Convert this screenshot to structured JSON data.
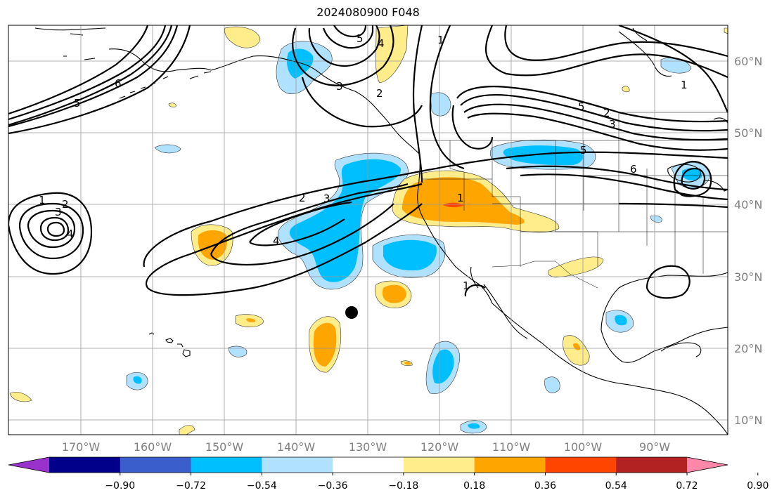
{
  "title": "2024080900 F048",
  "lon_labels": [
    "170°W",
    "160°W",
    "150°W",
    "140°W",
    "130°W",
    "120°W",
    "110°W",
    "100°W",
    "90°W"
  ],
  "lat_labels": [
    "60°N",
    "50°N",
    "40°N",
    "30°N",
    "20°N",
    "10°N"
  ],
  "colorbar": {
    "colors": [
      "#9932cc",
      "#00008b",
      "#3a5fcd",
      "#00bfff",
      "#b0e2ff",
      "#ffffff",
      "#ffec8b",
      "#ffa500",
      "#ff4500",
      "#b22222",
      "#ff88aa"
    ],
    "tick_labels": [
      "−0.90",
      "−0.72",
      "−0.54",
      "−0.36",
      "−0.18",
      "0.18",
      "0.36",
      "0.54",
      "0.72",
      "0.90"
    ]
  },
  "contour_labels": [
    {
      "text": "1"
    },
    {
      "text": "2"
    },
    {
      "text": "3"
    },
    {
      "text": "4"
    },
    {
      "text": "2"
    },
    {
      "text": "3"
    },
    {
      "text": "4"
    },
    {
      "text": "5"
    },
    {
      "text": "6"
    },
    {
      "text": "5"
    },
    {
      "text": "4"
    },
    {
      "text": "3"
    },
    {
      "text": "2"
    },
    {
      "text": "1"
    },
    {
      "text": "1"
    },
    {
      "text": "1"
    },
    {
      "text": "5"
    },
    {
      "text": "2"
    },
    {
      "text": "3"
    },
    {
      "text": "5"
    },
    {
      "text": "6"
    },
    {
      "text": "1"
    }
  ],
  "marker": {
    "name": "storm-center-dot"
  }
}
